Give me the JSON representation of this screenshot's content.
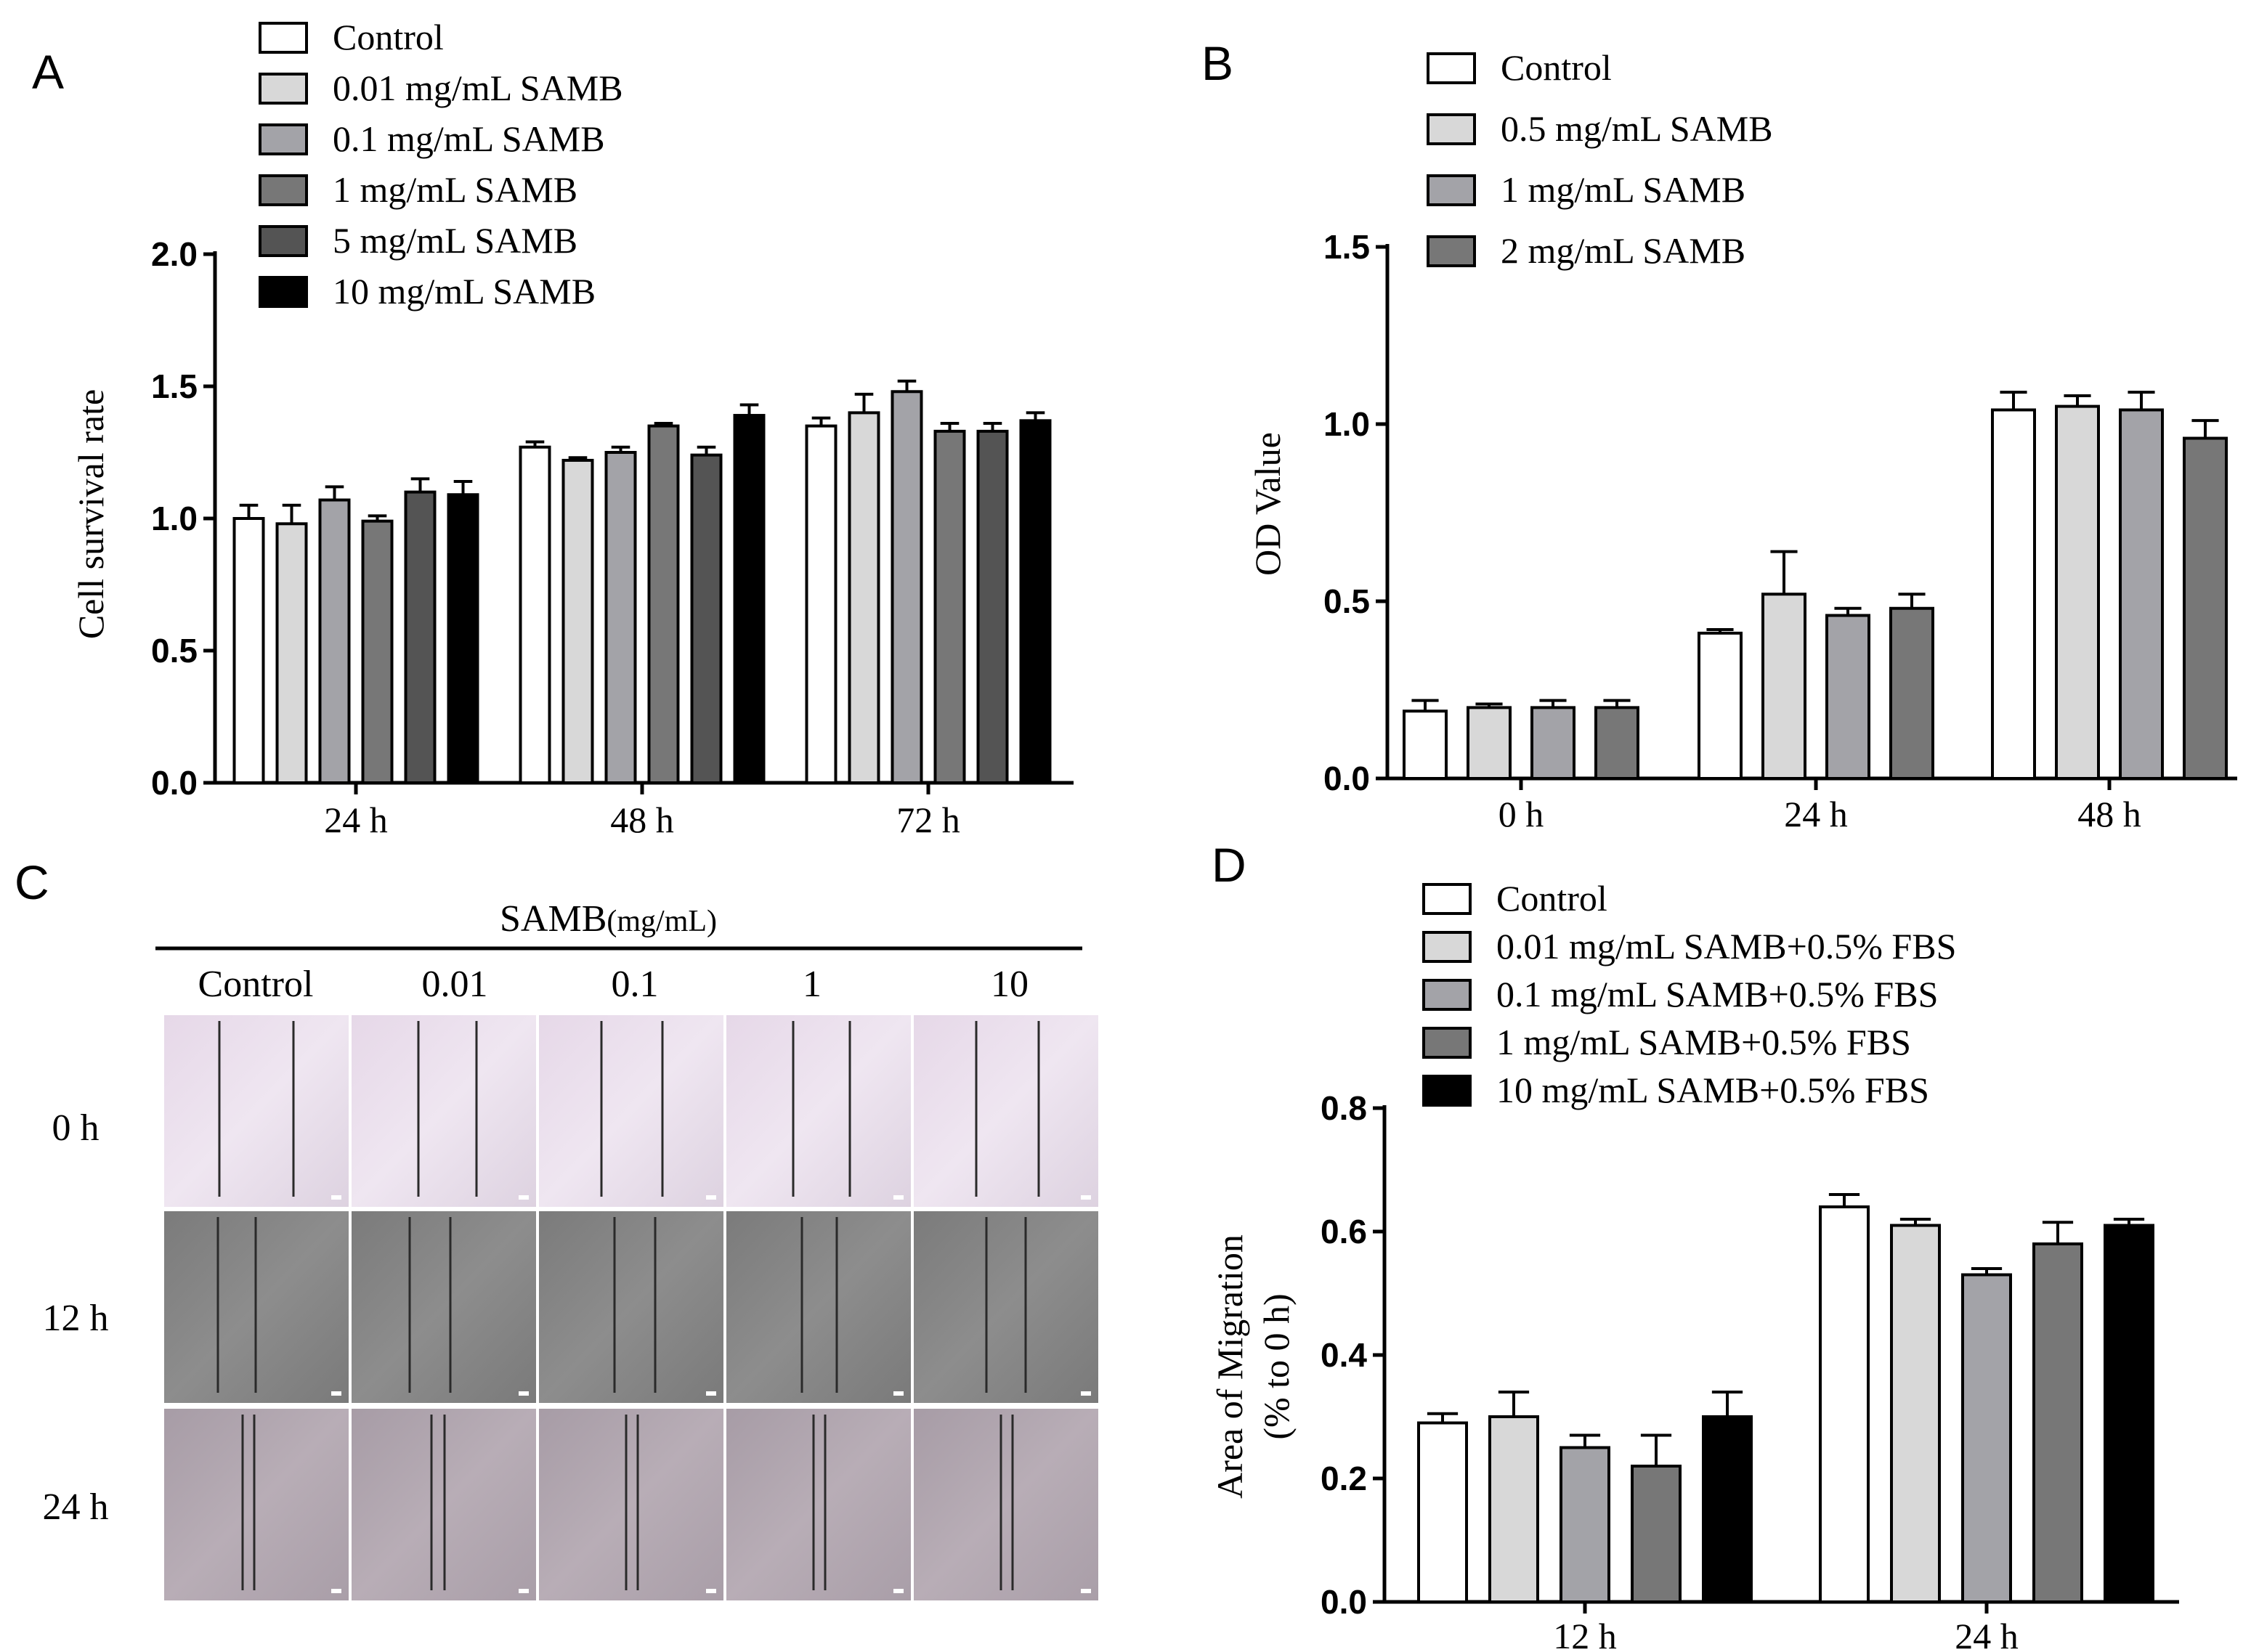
{
  "colors": {
    "control": "#ffffff",
    "lightgray": "#d8d8d8",
    "midgray": "#a3a3a8",
    "darkgray": "#777777",
    "darker": "#545454",
    "black": "#000000"
  },
  "panels": {
    "A": "A",
    "B": "B",
    "C": "C",
    "D": "D"
  },
  "chart_data": [
    {
      "id": "A",
      "type": "bar",
      "title": "",
      "xlabel": "",
      "ylabel": "Cell survival rate",
      "ylim": [
        0,
        2.0
      ],
      "yticks": [
        "0.0",
        "0.5",
        "1.0",
        "1.5",
        "2.0"
      ],
      "ytick_values": [
        0,
        0.5,
        1.0,
        1.5,
        2.0
      ],
      "categories": [
        "24 h",
        "48 h",
        "72 h"
      ],
      "series": [
        {
          "name": "Control",
          "color": "#ffffff",
          "values": [
            1.0,
            1.27,
            1.35
          ],
          "errors": [
            0.05,
            0.02,
            0.03
          ]
        },
        {
          "name": "0.01 mg/mL SAMB",
          "color": "#d8d8d8",
          "values": [
            0.98,
            1.22,
            1.4
          ],
          "errors": [
            0.07,
            0.01,
            0.07
          ]
        },
        {
          "name": "0.1 mg/mL SAMB",
          "color": "#a3a3a8",
          "values": [
            1.07,
            1.25,
            1.48
          ],
          "errors": [
            0.05,
            0.02,
            0.04
          ]
        },
        {
          "name": "1 mg/mL SAMB",
          "color": "#777777",
          "values": [
            0.99,
            1.35,
            1.33
          ],
          "errors": [
            0.02,
            0.01,
            0.03
          ]
        },
        {
          "name": "5 mg/mL SAMB",
          "color": "#545454",
          "values": [
            1.1,
            1.24,
            1.33
          ],
          "errors": [
            0.05,
            0.03,
            0.03
          ]
        },
        {
          "name": "10 mg/mL SAMB",
          "color": "#000000",
          "values": [
            1.09,
            1.39,
            1.37
          ],
          "errors": [
            0.05,
            0.04,
            0.03
          ]
        }
      ]
    },
    {
      "id": "B",
      "type": "bar",
      "title": "",
      "xlabel": "",
      "ylabel": "OD Value",
      "ylim": [
        0,
        1.5
      ],
      "yticks": [
        "0.0",
        "0.5",
        "1.0",
        "1.5"
      ],
      "ytick_values": [
        0,
        0.5,
        1.0,
        1.5
      ],
      "categories": [
        "0 h",
        "24 h",
        "48 h"
      ],
      "series": [
        {
          "name": "Control",
          "color": "#ffffff",
          "values": [
            0.19,
            0.41,
            1.04
          ],
          "errors": [
            0.03,
            0.01,
            0.05
          ]
        },
        {
          "name": "0.5 mg/mL SAMB",
          "color": "#d8d8d8",
          "values": [
            0.2,
            0.52,
            1.05
          ],
          "errors": [
            0.01,
            0.12,
            0.03
          ]
        },
        {
          "name": "1 mg/mL SAMB",
          "color": "#a3a3a8",
          "values": [
            0.2,
            0.46,
            1.04
          ],
          "errors": [
            0.02,
            0.02,
            0.05
          ]
        },
        {
          "name": "2 mg/mL SAMB",
          "color": "#777777",
          "values": [
            0.2,
            0.48,
            0.96
          ],
          "errors": [
            0.02,
            0.04,
            0.05
          ]
        }
      ]
    },
    {
      "id": "D",
      "type": "bar",
      "title": "",
      "xlabel": "",
      "ylabel": "Area of Migration",
      "ylabel2": "(% to 0 h)",
      "ylim": [
        0,
        0.8
      ],
      "yticks": [
        "0.0",
        "0.2",
        "0.4",
        "0.6",
        "0.8"
      ],
      "ytick_values": [
        0,
        0.2,
        0.4,
        0.6,
        0.8
      ],
      "categories": [
        "12 h",
        "24 h"
      ],
      "series": [
        {
          "name": "Control",
          "color": "#ffffff",
          "values": [
            0.29,
            0.64
          ],
          "errors": [
            0.015,
            0.02
          ]
        },
        {
          "name": "0.01 mg/mL SAMB+0.5% FBS",
          "color": "#d8d8d8",
          "values": [
            0.3,
            0.61
          ],
          "errors": [
            0.04,
            0.01
          ]
        },
        {
          "name": "0.1 mg/mL SAMB+0.5% FBS",
          "color": "#a3a3a8",
          "values": [
            0.25,
            0.53
          ],
          "errors": [
            0.02,
            0.01
          ]
        },
        {
          "name": "1 mg/mL SAMB+0.5% FBS",
          "color": "#777777",
          "values": [
            0.22,
            0.58
          ],
          "errors": [
            0.05,
            0.035
          ]
        },
        {
          "name": "10 mg/mL SAMB+0.5% FBS",
          "color": "#000000",
          "values": [
            0.3,
            0.61
          ],
          "errors": [
            0.04,
            0.01
          ]
        }
      ]
    }
  ],
  "wound_panel": {
    "header": "SAMB",
    "header_unit": "(mg/mL)",
    "columns": [
      "Control",
      "0.01",
      "0.1",
      "1",
      "10"
    ],
    "rows": [
      "0 h",
      "12 h",
      "24 h"
    ]
  }
}
